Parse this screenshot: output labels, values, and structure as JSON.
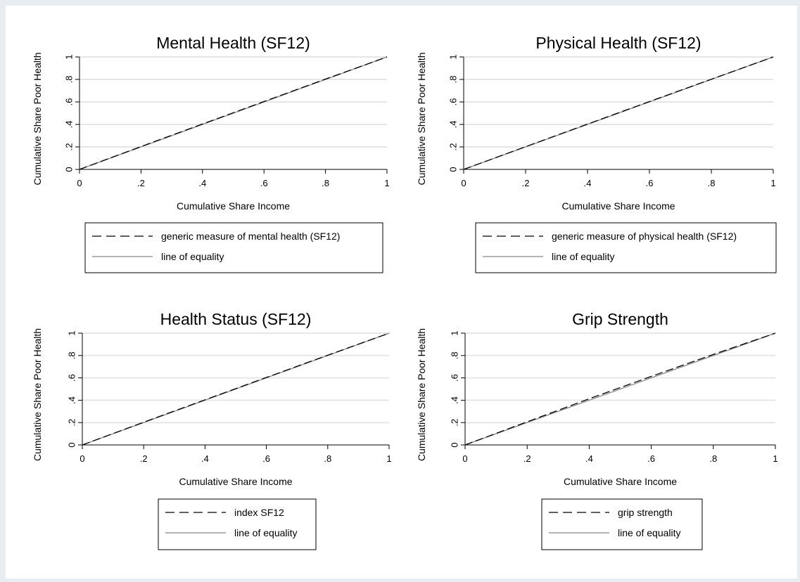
{
  "chart_data": [
    {
      "type": "line",
      "title": "Mental Health (SF12)",
      "xlabel": "Cumulative Share Income",
      "ylabel": "Cumulative Share Poor Health",
      "xlim": [
        0,
        1
      ],
      "ylim": [
        0,
        1
      ],
      "xticks": [
        "0",
        ".2",
        ".4",
        ".6",
        ".8",
        "1"
      ],
      "yticks": [
        "0",
        ".2",
        ".4",
        ".6",
        ".8",
        "1"
      ],
      "grid": true,
      "legend_position": "bottom",
      "series": [
        {
          "name": "generic measure of mental health (SF12)",
          "style": "dashed",
          "x": [
            0,
            0.2,
            0.4,
            0.6,
            0.8,
            1
          ],
          "y": [
            0,
            0.203,
            0.404,
            0.604,
            0.803,
            1
          ]
        },
        {
          "name": "line of equality",
          "style": "solid",
          "x": [
            0,
            1
          ],
          "y": [
            0,
            1
          ]
        }
      ]
    },
    {
      "type": "line",
      "title": "Physical Health (SF12)",
      "xlabel": "Cumulative Share Income",
      "ylabel": "Cumulative Share Poor Health",
      "xlim": [
        0,
        1
      ],
      "ylim": [
        0,
        1
      ],
      "xticks": [
        "0",
        ".2",
        ".4",
        ".6",
        ".8",
        "1"
      ],
      "yticks": [
        "0",
        ".2",
        ".4",
        ".6",
        ".8",
        "1"
      ],
      "grid": true,
      "legend_position": "bottom",
      "series": [
        {
          "name": "generic measure of physical health (SF12)",
          "style": "dashed",
          "x": [
            0,
            0.2,
            0.4,
            0.6,
            0.8,
            1
          ],
          "y": [
            0,
            0.202,
            0.403,
            0.603,
            0.802,
            1
          ]
        },
        {
          "name": "line of equality",
          "style": "solid",
          "x": [
            0,
            1
          ],
          "y": [
            0,
            1
          ]
        }
      ]
    },
    {
      "type": "line",
      "title": "Health Status (SF12)",
      "xlabel": "Cumulative Share Income",
      "ylabel": "Cumulative Share Poor Health",
      "xlim": [
        0,
        1
      ],
      "ylim": [
        0,
        1
      ],
      "xticks": [
        "0",
        ".2",
        ".4",
        ".6",
        ".8",
        "1"
      ],
      "yticks": [
        "0",
        ".2",
        ".4",
        ".6",
        ".8",
        "1"
      ],
      "grid": true,
      "legend_position": "bottom",
      "series": [
        {
          "name": "index SF12",
          "style": "dashed",
          "x": [
            0,
            0.2,
            0.4,
            0.6,
            0.8,
            1
          ],
          "y": [
            0,
            0.203,
            0.404,
            0.604,
            0.803,
            1
          ]
        },
        {
          "name": "line of equality",
          "style": "solid",
          "x": [
            0,
            1
          ],
          "y": [
            0,
            1
          ]
        }
      ]
    },
    {
      "type": "line",
      "title": "Grip Strength",
      "xlabel": "Cumulative Share Income",
      "ylabel": "Cumulative Share Poor Health",
      "xlim": [
        0,
        1
      ],
      "ylim": [
        0,
        1
      ],
      "xticks": [
        "0",
        ".2",
        ".4",
        ".6",
        ".8",
        "1"
      ],
      "yticks": [
        "0",
        ".2",
        ".4",
        ".6",
        ".8",
        "1"
      ],
      "grid": true,
      "legend_position": "bottom",
      "series": [
        {
          "name": "grip strength",
          "style": "dashed",
          "x": [
            0,
            0.2,
            0.4,
            0.6,
            0.8,
            1
          ],
          "y": [
            0,
            0.207,
            0.413,
            0.613,
            0.81,
            1
          ]
        },
        {
          "name": "line of equality",
          "style": "solid",
          "x": [
            0,
            1
          ],
          "y": [
            0,
            1
          ]
        }
      ]
    }
  ],
  "colors": {
    "background": "#e8edf1",
    "plot_background": "#ffffff",
    "grid": "#e6e6e6",
    "series_dashed": "#000000",
    "series_equality": "#888888"
  }
}
